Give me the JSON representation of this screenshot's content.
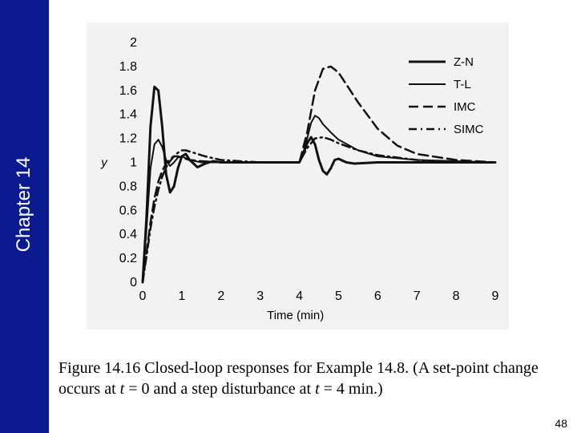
{
  "sidebar": {
    "chapter_label": "Chapter 14",
    "color": "#0b1b8f"
  },
  "caption": {
    "part1": "Figure 14.16 Closed-loop responses for Example 14.8. (A set-point change occurs at ",
    "t1": "t",
    "part2": " = 0 and a step disturbance at ",
    "t2": "t",
    "part3": " = 4 min.)"
  },
  "page_number": "48",
  "chart_data": {
    "type": "line",
    "xlabel": "Time (min)",
    "ylabel": "y",
    "xlim": [
      0,
      9
    ],
    "ylim": [
      0,
      2
    ],
    "x_ticks": [
      "0",
      "1",
      "2",
      "3",
      "4",
      "5",
      "6",
      "7",
      "8",
      "9"
    ],
    "y_ticks": [
      "0",
      "0.2",
      "0.4",
      "0.6",
      "0.8",
      "1",
      "1.2",
      "1.4",
      "1.6",
      "1.8",
      "2"
    ],
    "legend_position": "top-right",
    "series": [
      {
        "name": "Z-N",
        "style": "solid",
        "stroke_width": 3,
        "x": [
          0,
          0.1,
          0.2,
          0.3,
          0.4,
          0.5,
          0.6,
          0.7,
          0.8,
          0.9,
          1.0,
          1.1,
          1.2,
          1.4,
          1.6,
          1.8,
          2.0,
          3.0,
          4.0,
          4.1,
          4.2,
          4.3,
          4.4,
          4.5,
          4.6,
          4.7,
          4.8,
          4.9,
          5.0,
          5.2,
          5.4,
          6.0,
          7.0,
          8.0,
          9.0
        ],
        "y": [
          0,
          0.55,
          1.3,
          1.63,
          1.6,
          1.3,
          0.9,
          0.75,
          0.8,
          0.95,
          1.05,
          1.07,
          1.02,
          0.96,
          0.99,
          1.01,
          1.0,
          1.0,
          1.0,
          1.07,
          1.16,
          1.21,
          1.15,
          1.02,
          0.93,
          0.9,
          0.95,
          1.02,
          1.03,
          1.0,
          0.99,
          1.0,
          1.0,
          1.0,
          1.0
        ]
      },
      {
        "name": "T-L",
        "style": "solid",
        "stroke_width": 2,
        "x": [
          0,
          0.1,
          0.2,
          0.3,
          0.4,
          0.5,
          0.6,
          0.7,
          0.8,
          0.9,
          1.0,
          1.2,
          1.5,
          2.0,
          3.0,
          4.0,
          4.1,
          4.2,
          4.3,
          4.4,
          4.5,
          4.6,
          4.8,
          5.0,
          5.5,
          6.0,
          7.0,
          8.0,
          9.0
        ],
        "y": [
          0,
          0.45,
          0.95,
          1.15,
          1.19,
          1.13,
          1.02,
          0.97,
          1.0,
          1.04,
          1.05,
          1.02,
          1.0,
          1.0,
          1.0,
          1.0,
          1.08,
          1.2,
          1.33,
          1.39,
          1.37,
          1.32,
          1.25,
          1.19,
          1.1,
          1.05,
          1.02,
          1.01,
          1.0
        ]
      },
      {
        "name": "IMC",
        "style": "dashed",
        "stroke_width": 2.5,
        "x": [
          0,
          0.1,
          0.2,
          0.3,
          0.4,
          0.5,
          0.6,
          0.7,
          0.8,
          0.9,
          1.0,
          1.2,
          1.5,
          2.0,
          3.0,
          4.0,
          4.2,
          4.4,
          4.6,
          4.8,
          5.0,
          5.2,
          5.5,
          6.0,
          6.5,
          7.0,
          8.0,
          9.0
        ],
        "y": [
          0,
          0.25,
          0.5,
          0.7,
          0.84,
          0.93,
          0.99,
          1.03,
          1.05,
          1.05,
          1.04,
          1.02,
          1.01,
          1.0,
          1.0,
          1.0,
          1.25,
          1.6,
          1.78,
          1.8,
          1.75,
          1.65,
          1.5,
          1.28,
          1.14,
          1.07,
          1.02,
          1.0
        ]
      },
      {
        "name": "SIMC",
        "style": "dashdot",
        "stroke_width": 2.5,
        "x": [
          0,
          0.1,
          0.2,
          0.3,
          0.4,
          0.5,
          0.6,
          0.7,
          0.8,
          0.9,
          1.0,
          1.1,
          1.2,
          1.4,
          1.6,
          2.0,
          3.0,
          4.0,
          4.2,
          4.4,
          4.6,
          4.8,
          5.0,
          5.5,
          6.0,
          7.0,
          8.0,
          9.0
        ],
        "y": [
          0,
          0.22,
          0.45,
          0.63,
          0.77,
          0.88,
          0.96,
          1.01,
          1.05,
          1.08,
          1.1,
          1.1,
          1.09,
          1.07,
          1.05,
          1.02,
          1.0,
          1.0,
          1.12,
          1.2,
          1.21,
          1.19,
          1.16,
          1.1,
          1.06,
          1.02,
          1.0,
          1.0
        ]
      }
    ]
  }
}
